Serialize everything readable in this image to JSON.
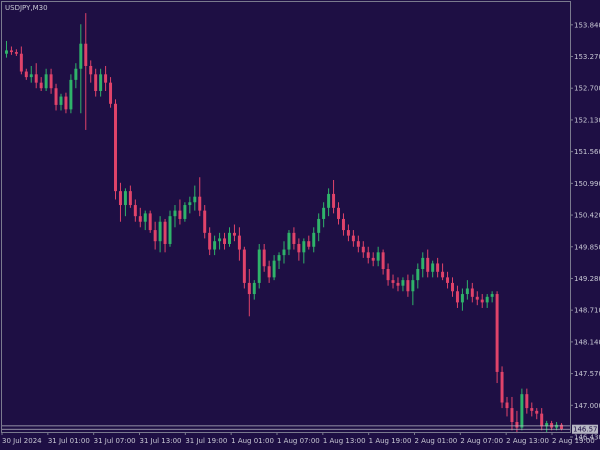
{
  "symbol_label": "USDJPY,M30",
  "colors": {
    "background": "#1e0f44",
    "frame": "#7a7a8e",
    "bull": "#2fb36a",
    "bear": "#e0436a",
    "wick": "#8a8a9a",
    "text": "#c8c8d4",
    "price_line": "#b8b8c4"
  },
  "chart_data": {
    "type": "candlestick",
    "title": "USDJPY,M30",
    "ylim": [
      146.52,
      154.25
    ],
    "y_ticks": [
      "153.840",
      "153.270",
      "152.700",
      "152.130",
      "151.560",
      "150.990",
      "150.420",
      "149.850",
      "149.280",
      "148.710",
      "148.140",
      "147.570",
      "147.000",
      "146.430"
    ],
    "x_ticks": [
      "30 Jul 2024",
      "31 Jul 01:00",
      "31 Jul 07:00",
      "31 Jul 13:00",
      "31 Jul 19:00",
      "1 Aug 01:00",
      "1 Aug 07:00",
      "1 Aug 13:00",
      "1 Aug 19:00",
      "2 Aug 01:00",
      "2 Aug 07:00",
      "2 Aug 13:00",
      "2 Aug 19:00"
    ],
    "current_price": "146.570",
    "current_price_value": 146.57,
    "upper_level": 146.63,
    "candles": [
      [
        153.32,
        153.55,
        153.25,
        153.38
      ],
      [
        153.38,
        153.45,
        153.3,
        153.35
      ],
      [
        153.35,
        153.4,
        153.28,
        153.32
      ],
      [
        153.32,
        153.45,
        152.95,
        153.0
      ],
      [
        153.0,
        153.05,
        152.85,
        152.9
      ],
      [
        152.9,
        153.1,
        152.8,
        152.95
      ],
      [
        152.95,
        153.15,
        152.7,
        152.8
      ],
      [
        152.8,
        152.9,
        152.65,
        152.7
      ],
      [
        152.7,
        153.05,
        152.65,
        152.95
      ],
      [
        152.95,
        153.05,
        152.6,
        152.7
      ],
      [
        152.7,
        152.78,
        152.3,
        152.4
      ],
      [
        152.4,
        152.6,
        152.3,
        152.55
      ],
      [
        152.55,
        152.62,
        152.25,
        152.32
      ],
      [
        152.32,
        152.95,
        152.25,
        152.85
      ],
      [
        152.85,
        153.15,
        152.7,
        153.05
      ],
      [
        153.05,
        153.85,
        152.25,
        153.5
      ],
      [
        153.5,
        154.05,
        151.95,
        153.1
      ],
      [
        153.1,
        153.2,
        152.8,
        152.95
      ],
      [
        152.95,
        153.05,
        152.55,
        152.65
      ],
      [
        152.65,
        153.05,
        152.55,
        152.95
      ],
      [
        152.95,
        153.1,
        152.65,
        152.8
      ],
      [
        152.8,
        152.9,
        152.35,
        152.42
      ],
      [
        152.42,
        152.5,
        150.7,
        150.85
      ],
      [
        150.85,
        151.0,
        150.3,
        150.6
      ],
      [
        150.6,
        150.9,
        150.4,
        150.85
      ],
      [
        150.85,
        150.95,
        150.55,
        150.6
      ],
      [
        150.6,
        150.7,
        150.3,
        150.4
      ],
      [
        150.4,
        150.55,
        150.2,
        150.3
      ],
      [
        150.3,
        150.5,
        150.15,
        150.45
      ],
      [
        150.45,
        150.5,
        150.1,
        150.15
      ],
      [
        150.15,
        150.3,
        149.8,
        149.95
      ],
      [
        149.95,
        150.4,
        149.75,
        150.3
      ],
      [
        150.3,
        150.35,
        149.75,
        149.9
      ],
      [
        149.9,
        150.5,
        149.85,
        150.4
      ],
      [
        150.4,
        150.6,
        150.2,
        150.5
      ],
      [
        150.5,
        150.7,
        150.25,
        150.35
      ],
      [
        150.35,
        150.65,
        150.3,
        150.6
      ],
      [
        150.6,
        150.75,
        150.45,
        150.65
      ],
      [
        150.65,
        150.95,
        150.5,
        150.75
      ],
      [
        150.75,
        151.1,
        150.4,
        150.5
      ],
      [
        150.5,
        150.6,
        150.0,
        150.1
      ],
      [
        150.1,
        150.2,
        149.7,
        149.8
      ],
      [
        149.8,
        150.05,
        149.7,
        149.95
      ],
      [
        149.95,
        150.1,
        149.8,
        150.0
      ],
      [
        150.0,
        150.1,
        149.8,
        149.9
      ],
      [
        149.9,
        150.2,
        149.85,
        150.1
      ],
      [
        150.1,
        150.25,
        149.95,
        150.05
      ],
      [
        150.05,
        150.2,
        149.6,
        149.8
      ],
      [
        149.8,
        149.85,
        149.1,
        149.2
      ],
      [
        149.2,
        149.45,
        148.6,
        149.0
      ],
      [
        149.0,
        149.25,
        148.9,
        149.2
      ],
      [
        149.2,
        149.9,
        149.1,
        149.8
      ],
      [
        149.8,
        149.9,
        149.4,
        149.5
      ],
      [
        149.5,
        149.6,
        149.2,
        149.3
      ],
      [
        149.3,
        149.7,
        149.25,
        149.6
      ],
      [
        149.6,
        149.75,
        149.45,
        149.7
      ],
      [
        149.7,
        149.95,
        149.55,
        149.8
      ],
      [
        149.8,
        150.15,
        149.7,
        150.1
      ],
      [
        150.1,
        150.2,
        149.8,
        149.9
      ],
      [
        149.9,
        150.0,
        149.6,
        149.75
      ],
      [
        149.75,
        150.0,
        149.55,
        149.95
      ],
      [
        149.95,
        150.05,
        149.8,
        149.85
      ],
      [
        149.85,
        150.2,
        149.75,
        150.1
      ],
      [
        150.1,
        150.45,
        149.95,
        150.35
      ],
      [
        150.35,
        150.65,
        150.2,
        150.55
      ],
      [
        150.55,
        150.9,
        150.4,
        150.8
      ],
      [
        150.8,
        151.05,
        150.45,
        150.55
      ],
      [
        150.55,
        150.65,
        150.25,
        150.35
      ],
      [
        150.35,
        150.45,
        150.05,
        150.15
      ],
      [
        150.15,
        150.25,
        149.95,
        150.05
      ],
      [
        150.05,
        150.15,
        149.85,
        149.95
      ],
      [
        149.95,
        150.05,
        149.75,
        149.85
      ],
      [
        149.85,
        149.95,
        149.65,
        149.75
      ],
      [
        149.75,
        149.85,
        149.55,
        149.65
      ],
      [
        149.65,
        149.75,
        149.5,
        149.6
      ],
      [
        149.6,
        149.85,
        149.5,
        149.75
      ],
      [
        149.75,
        149.8,
        149.35,
        149.45
      ],
      [
        149.45,
        149.55,
        149.15,
        149.25
      ],
      [
        149.25,
        149.35,
        149.1,
        149.2
      ],
      [
        149.2,
        149.3,
        149.05,
        149.15
      ],
      [
        149.15,
        149.3,
        149.05,
        149.25
      ],
      [
        149.25,
        149.35,
        148.95,
        149.05
      ],
      [
        149.05,
        149.35,
        148.8,
        149.25
      ],
      [
        149.25,
        149.55,
        149.1,
        149.45
      ],
      [
        149.45,
        149.75,
        149.3,
        149.65
      ],
      [
        149.65,
        149.8,
        149.3,
        149.4
      ],
      [
        149.4,
        149.6,
        149.3,
        149.55
      ],
      [
        149.55,
        149.65,
        149.3,
        149.4
      ],
      [
        149.4,
        149.55,
        149.25,
        149.3
      ],
      [
        149.3,
        149.4,
        149.1,
        149.2
      ],
      [
        149.2,
        149.3,
        148.95,
        149.05
      ],
      [
        149.05,
        149.15,
        148.75,
        148.85
      ],
      [
        148.85,
        149.1,
        148.7,
        149.0
      ],
      [
        149.0,
        149.25,
        148.9,
        149.1
      ],
      [
        149.1,
        149.2,
        148.85,
        148.95
      ],
      [
        148.95,
        149.05,
        148.8,
        148.9
      ],
      [
        148.9,
        149.0,
        148.75,
        148.85
      ],
      [
        148.85,
        149.0,
        148.75,
        148.95
      ],
      [
        148.95,
        149.05,
        148.85,
        149.0
      ],
      [
        149.0,
        149.05,
        147.4,
        147.6
      ],
      [
        147.6,
        147.7,
        146.95,
        147.05
      ],
      [
        147.05,
        147.15,
        146.8,
        146.95
      ],
      [
        146.95,
        147.15,
        146.55,
        146.7
      ],
      [
        146.7,
        146.9,
        146.5,
        146.6
      ],
      [
        146.6,
        147.3,
        146.55,
        147.2
      ],
      [
        147.2,
        147.3,
        146.85,
        146.95
      ],
      [
        146.95,
        147.05,
        146.8,
        146.9
      ],
      [
        146.9,
        146.95,
        146.75,
        146.85
      ],
      [
        146.85,
        146.95,
        146.55,
        146.62
      ],
      [
        146.62,
        146.72,
        146.52,
        146.68
      ],
      [
        146.68,
        146.72,
        146.55,
        146.6
      ],
      [
        146.6,
        146.7,
        146.55,
        146.65
      ],
      [
        146.65,
        146.68,
        146.55,
        146.57
      ]
    ]
  }
}
